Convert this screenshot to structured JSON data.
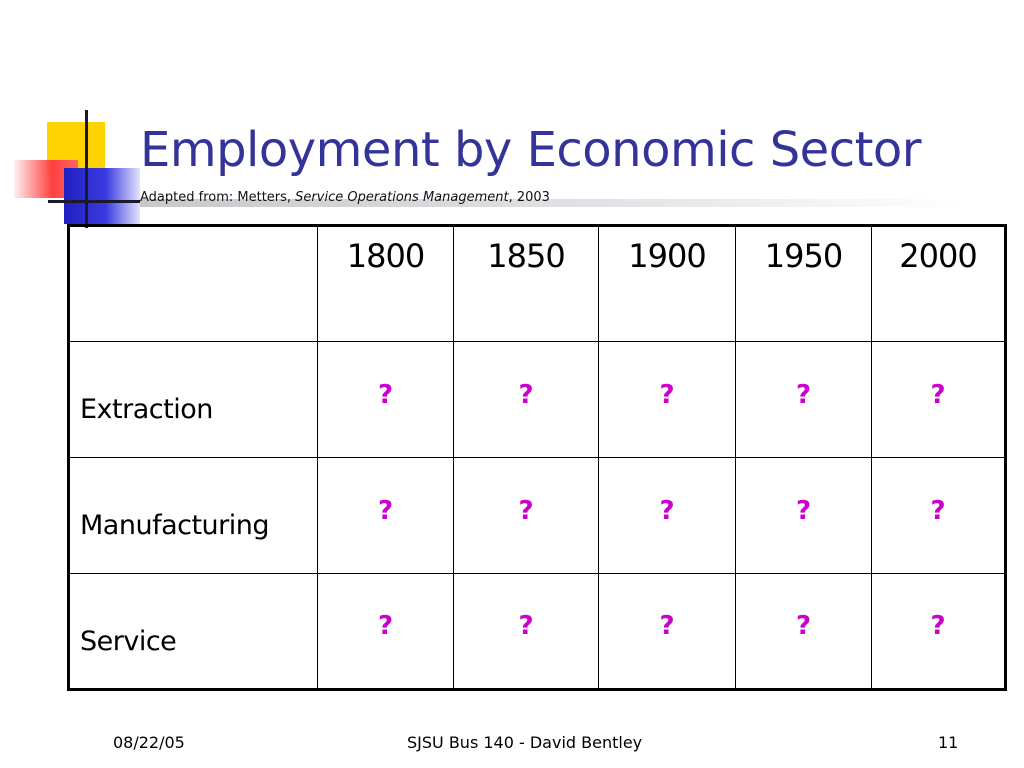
{
  "slide": {
    "title": "Employment by Economic Sector",
    "subtitle": {
      "prefix": "Adapted from: Metters, ",
      "italic": "Service Operations Management",
      "suffix": ", 2003"
    }
  },
  "table": {
    "corner": "",
    "years": [
      "1800",
      "1850",
      "1900",
      "1950",
      "2000"
    ],
    "rows": [
      {
        "sector": "Extraction",
        "values": [
          "?",
          "?",
          "?",
          "?",
          "?"
        ]
      },
      {
        "sector": "Manufacturing",
        "values": [
          "?",
          "?",
          "?",
          "?",
          "?"
        ]
      },
      {
        "sector": "Service",
        "values": [
          "?",
          "?",
          "?",
          "?",
          "?"
        ]
      }
    ]
  },
  "footer": {
    "date": "08/22/05",
    "center": "SJSU Bus 140 - David Bentley",
    "page": "11"
  },
  "colors": {
    "title": "#333399",
    "placeholder": "#cc00cc",
    "accent_yellow": "#ffd200",
    "accent_red": "#ff4040",
    "accent_blue": "#2020c0"
  }
}
